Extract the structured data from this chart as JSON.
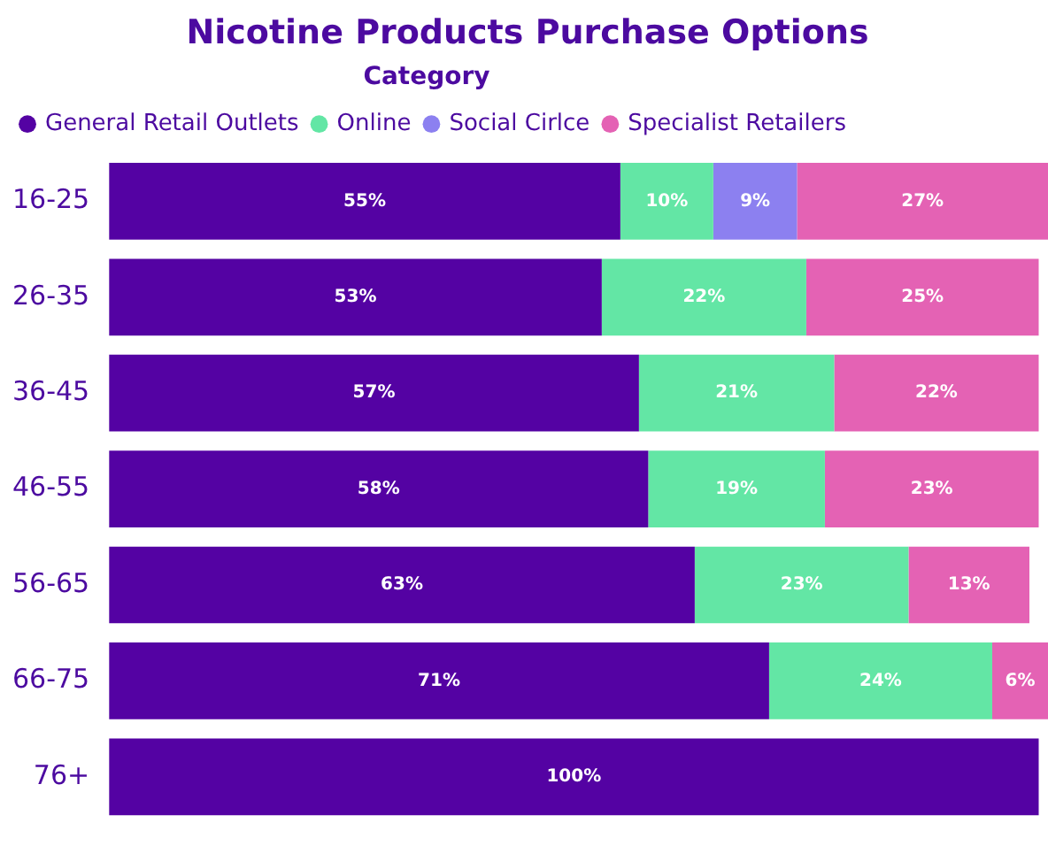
{
  "chart_data": {
    "type": "bar",
    "orientation": "horizontal",
    "stacked": true,
    "title": "Nicotine Products Purchase Options",
    "legend_title": "Category",
    "legend": "top left",
    "grid": false,
    "tick_labels": "y",
    "xlim": [
      0,
      101
    ],
    "categories": [
      "16-25",
      "26-35",
      "36-45",
      "46-55",
      "56-65",
      "66-75",
      "76+"
    ],
    "series": [
      {
        "name": "General Retail Outlets",
        "color": "#5402a3",
        "values": [
          55,
          53,
          57,
          58,
          63,
          71,
          100
        ],
        "value_labels": [
          "55%",
          "53%",
          "57%",
          "58%",
          "63%",
          "71%",
          "100%"
        ]
      },
      {
        "name": "Online",
        "color": "#63e6a5",
        "values": [
          10,
          22,
          21,
          19,
          23,
          24,
          null
        ],
        "value_labels": [
          "10%",
          "22%",
          "21%",
          "19%",
          "23%",
          "24%",
          null
        ]
      },
      {
        "name": "Social Cirlce",
        "color": "#8c80f0",
        "values": [
          9,
          null,
          null,
          null,
          null,
          null,
          null
        ],
        "value_labels": [
          "9%",
          null,
          null,
          null,
          null,
          null,
          null
        ]
      },
      {
        "name": "Specialist Retailers",
        "color": "#e462b4",
        "values": [
          27,
          25,
          22,
          23,
          13,
          6,
          null
        ],
        "value_labels": [
          "27%",
          "25%",
          "22%",
          "23%",
          "13%",
          "6%",
          null
        ]
      }
    ]
  }
}
